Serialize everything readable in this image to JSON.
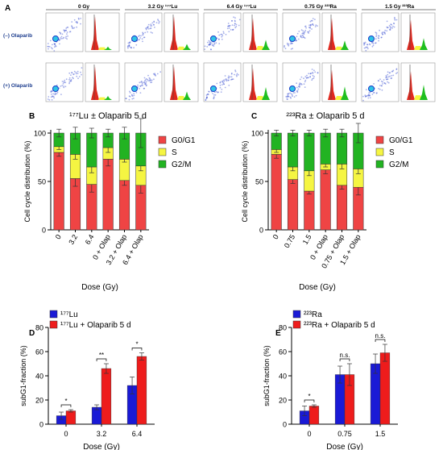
{
  "colors": {
    "g0g1": "#ef4444",
    "s": "#f5f542",
    "g2m": "#22b322",
    "blue": "#1a1ad6",
    "red": "#ee1c1c",
    "flow_red": "#e0281e",
    "flow_green": "#1fbf1f",
    "scatter_blue": "#3a4fd0"
  },
  "panel_a": {
    "letter": "A",
    "columns": [
      "0 Gy",
      "3.2 Gy ¹⁷⁷Lu",
      "6.4 Gy ¹⁷⁷Lu",
      "0.75 Gy ²²³Ra",
      "1.5 Gy ²²³Ra"
    ],
    "rows": [
      "(–) Olaparib",
      "(+) Olaparib"
    ],
    "histograms": [
      [
        {
          "g1": 1.0,
          "s": 0.08,
          "g2": 0.1
        },
        {
          "g1": 1.0,
          "s": 0.1,
          "g2": 0.18
        },
        {
          "g1": 0.95,
          "s": 0.12,
          "g2": 0.3
        },
        {
          "g1": 0.95,
          "s": 0.1,
          "g2": 0.28
        },
        {
          "g1": 0.9,
          "s": 0.12,
          "g2": 0.35
        }
      ],
      [
        {
          "g1": 1.0,
          "s": 0.08,
          "g2": 0.12
        },
        {
          "g1": 1.0,
          "s": 0.12,
          "g2": 0.25
        },
        {
          "g1": 0.95,
          "s": 0.12,
          "g2": 0.38
        },
        {
          "g1": 0.9,
          "s": 0.12,
          "g2": 0.4
        },
        {
          "g1": 0.85,
          "s": 0.14,
          "g2": 0.45
        }
      ]
    ]
  },
  "chart_data": [
    {
      "panel": "B",
      "type": "bar",
      "stacked": true,
      "title": "¹⁷⁷Lu ± Olaparib 5 d",
      "xlabel": "Dose (Gy)",
      "ylabel": "Cell cycle distribution (%)",
      "ylim": [
        0,
        100
      ],
      "yticks": [
        0,
        50,
        100
      ],
      "categories": [
        "0",
        "3.2",
        "6.4",
        "0 + Olap",
        "3.2 + Olap",
        "6.4 + Olap"
      ],
      "series": [
        {
          "name": "G0/G1",
          "values": [
            80,
            53,
            47,
            73,
            51,
            46
          ],
          "err": [
            4,
            8,
            8,
            7,
            5,
            8
          ]
        },
        {
          "name": "S",
          "values": [
            6,
            25,
            18,
            12,
            22,
            20
          ],
          "err": [
            3,
            5,
            6,
            5,
            3,
            5
          ]
        },
        {
          "name": "G2/M",
          "values": [
            14,
            22,
            35,
            15,
            27,
            34
          ],
          "err": [
            4,
            6,
            5,
            4,
            6,
            15
          ]
        }
      ],
      "legend": "right"
    },
    {
      "panel": "C",
      "type": "bar",
      "stacked": true,
      "title": "²²³Ra ± Olaparib 5 d",
      "xlabel": "Dose (Gy)",
      "ylabel": "Cell cycle distribution (%)",
      "ylim": [
        0,
        100
      ],
      "yticks": [
        0,
        50,
        100
      ],
      "categories": [
        "0",
        "0.75",
        "1.5",
        "0 + Olap",
        "0.75 + Olap",
        "1.5 + Olap"
      ],
      "series": [
        {
          "name": "G0/G1",
          "values": [
            78,
            52,
            40,
            62,
            46,
            44
          ],
          "err": [
            4,
            4,
            3,
            4,
            4,
            8
          ]
        },
        {
          "name": "S",
          "values": [
            5,
            13,
            21,
            6,
            22,
            19
          ],
          "err": [
            3,
            4,
            5,
            3,
            5,
            5
          ]
        },
        {
          "name": "G2/M",
          "values": [
            17,
            35,
            39,
            32,
            32,
            37
          ],
          "err": [
            3,
            3,
            3,
            4,
            4,
            10
          ]
        }
      ],
      "legend": "right"
    },
    {
      "panel": "D",
      "type": "bar",
      "grouped": true,
      "xlabel": "Dose (Gy)",
      "ylabel": "subG1-fraction (%)",
      "ylim": [
        0,
        80
      ],
      "yticks": [
        0,
        20,
        40,
        60,
        80
      ],
      "categories": [
        "0",
        "3.2",
        "6.4"
      ],
      "series": [
        {
          "name": "¹⁷⁷Lu",
          "values": [
            7,
            14,
            32
          ],
          "err": [
            3,
            2,
            7
          ]
        },
        {
          "name": "¹⁷⁷Lu + Olaparib 5 d",
          "values": [
            11,
            46,
            56
          ],
          "err": [
            1,
            4,
            3
          ]
        }
      ],
      "significance": [
        "*",
        "**",
        "*"
      ],
      "legend": "top-left"
    },
    {
      "panel": "E",
      "type": "bar",
      "grouped": true,
      "xlabel": "Dose (Gy)",
      "ylabel": "subG1-fraction (%)",
      "ylim": [
        0,
        80
      ],
      "yticks": [
        0,
        20,
        40,
        60,
        80
      ],
      "categories": [
        "0",
        "0.75",
        "1.5"
      ],
      "series": [
        {
          "name": "²²³Ra",
          "values": [
            11,
            41,
            50
          ],
          "err": [
            4,
            7,
            8
          ]
        },
        {
          "name": "²²³Ra + Olaparib 5 d",
          "values": [
            15,
            41,
            59
          ],
          "err": [
            1,
            9,
            7
          ]
        }
      ],
      "significance": [
        "*",
        "n.s.",
        "n.s."
      ],
      "legend": "top-left"
    }
  ]
}
